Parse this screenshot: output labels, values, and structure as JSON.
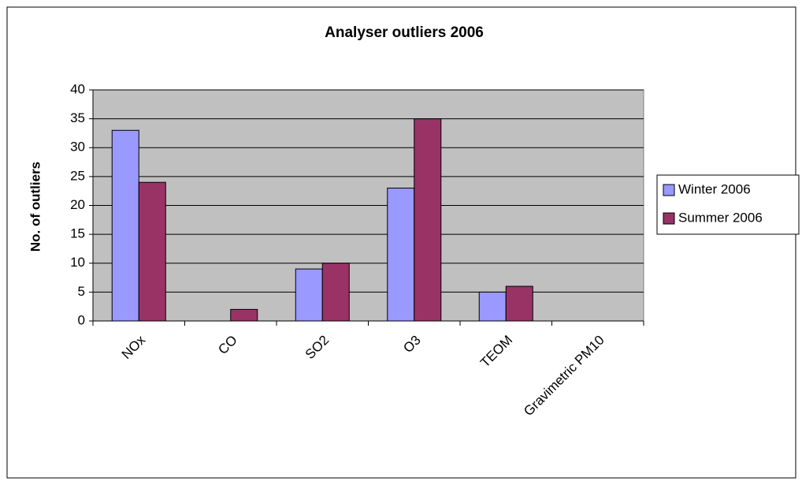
{
  "chart_data": {
    "type": "bar",
    "title": "Analyser outliers 2006",
    "y_label": "No. of outliers",
    "categories": [
      "NOx",
      "CO",
      "SO2",
      "O3",
      "TEOM",
      "Gravimetric PM10"
    ],
    "series": [
      {
        "name": "Winter 2006",
        "color": "#9999ff",
        "values": [
          33,
          0,
          9,
          23,
          5,
          0
        ]
      },
      {
        "name": "Summer 2006",
        "color": "#993366",
        "values": [
          24,
          2,
          10,
          35,
          6,
          0
        ]
      }
    ],
    "ylim": [
      0,
      40
    ],
    "yticks": [
      0,
      5,
      10,
      15,
      20,
      25,
      30,
      35,
      40
    ],
    "grid": true,
    "legend": "right"
  }
}
